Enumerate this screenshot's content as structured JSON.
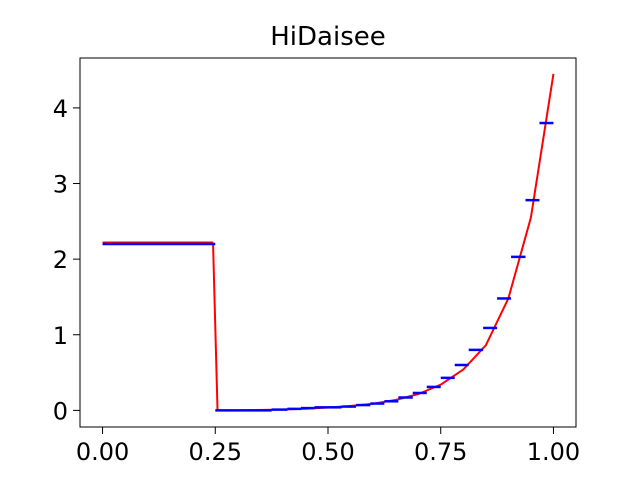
{
  "chart_data": {
    "type": "line",
    "title": "HiDaisee",
    "xlabel": "",
    "ylabel": "",
    "xlim": [
      -0.05,
      1.05
    ],
    "ylim": [
      -0.22,
      4.66
    ],
    "xticks": [
      0.0,
      0.25,
      0.5,
      0.75,
      1.0
    ],
    "xtick_labels": [
      "0.00",
      "0.25",
      "0.50",
      "0.75",
      "1.00"
    ],
    "yticks": [
      0,
      1,
      2,
      3,
      4
    ],
    "ytick_labels": [
      "0",
      "1",
      "2",
      "3",
      "4"
    ],
    "grid": false,
    "legend": "none",
    "colors": {
      "curve": "#ff0000",
      "steps": "#0000ff",
      "axes": "#000000"
    },
    "series": [
      {
        "kind": "curve",
        "segments": [
          {
            "x": [
              0.0,
              0.245
            ],
            "y": [
              2.22,
              2.22
            ]
          },
          {
            "x": [
              0.245,
              0.255
            ],
            "y": [
              2.22,
              0.0
            ]
          },
          {
            "x": [
              0.255,
              0.3,
              0.35,
              0.4,
              0.45,
              0.5,
              0.55,
              0.6,
              0.65,
              0.7,
              0.75,
              0.8,
              0.85,
              0.9,
              0.95,
              1.0
            ],
            "y": [
              0.0,
              0.0,
              0.004,
              0.011,
              0.022,
              0.038,
              0.058,
              0.088,
              0.137,
              0.215,
              0.34,
              0.54,
              0.86,
              1.48,
              2.55,
              4.45
            ]
          }
        ]
      },
      {
        "kind": "steps",
        "steps": [
          {
            "x0": 0.0,
            "x1": 0.25,
            "y": 2.2
          },
          {
            "x0": 0.25,
            "x1": 0.3,
            "y": 0.0
          },
          {
            "x0": 0.3,
            "x1": 0.375,
            "y": 0.0
          },
          {
            "x0": 0.375,
            "x1": 0.41,
            "y": 0.01
          },
          {
            "x0": 0.41,
            "x1": 0.44,
            "y": 0.02
          },
          {
            "x0": 0.44,
            "x1": 0.47,
            "y": 0.03
          },
          {
            "x0": 0.47,
            "x1": 0.5,
            "y": 0.04
          },
          {
            "x0": 0.5,
            "x1": 0.53,
            "y": 0.04
          },
          {
            "x0": 0.53,
            "x1": 0.562,
            "y": 0.05
          },
          {
            "x0": 0.562,
            "x1": 0.594,
            "y": 0.07
          },
          {
            "x0": 0.594,
            "x1": 0.625,
            "y": 0.09
          },
          {
            "x0": 0.625,
            "x1": 0.656,
            "y": 0.12
          },
          {
            "x0": 0.656,
            "x1": 0.688,
            "y": 0.17
          },
          {
            "x0": 0.688,
            "x1": 0.719,
            "y": 0.23
          },
          {
            "x0": 0.719,
            "x1": 0.75,
            "y": 0.31
          },
          {
            "x0": 0.75,
            "x1": 0.781,
            "y": 0.43
          },
          {
            "x0": 0.781,
            "x1": 0.812,
            "y": 0.6
          },
          {
            "x0": 0.812,
            "x1": 0.844,
            "y": 0.8
          },
          {
            "x0": 0.844,
            "x1": 0.875,
            "y": 1.09
          },
          {
            "x0": 0.875,
            "x1": 0.906,
            "y": 1.48
          },
          {
            "x0": 0.906,
            "x1": 0.938,
            "y": 2.03
          },
          {
            "x0": 0.938,
            "x1": 0.969,
            "y": 2.78
          },
          {
            "x0": 0.969,
            "x1": 1.0,
            "y": 3.8
          }
        ]
      }
    ]
  }
}
